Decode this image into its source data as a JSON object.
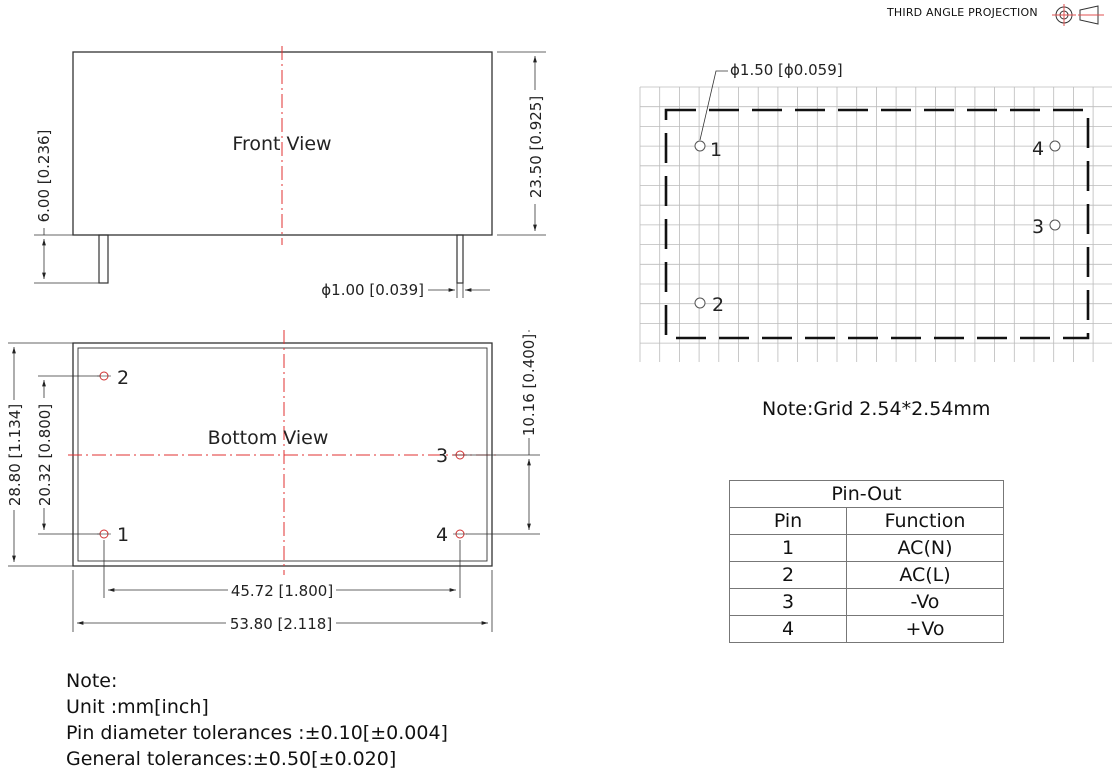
{
  "projection": {
    "label": "THIRD ANGLE PROJECTION"
  },
  "front_view": {
    "title": "Front View",
    "dim_height": "23.50 [0.925]",
    "dim_pin_length": "6.00 [0.236]",
    "dim_pin_diameter": "ϕ1.00 [0.039]"
  },
  "bottom_view": {
    "title": "Bottom View",
    "dim_height": "28.80 [1.134]",
    "dim_pin_span_v": "20.32 [0.800]",
    "dim_pin3_offset": "10.16 [0.400]",
    "dim_pin_span_h": "45.72 [1.800]",
    "dim_width": "53.80 [2.118]",
    "pins": [
      "1",
      "2",
      "3",
      "4"
    ]
  },
  "grid_view": {
    "hole_diameter": "ϕ1.50 [ϕ0.059]",
    "pins": [
      "1",
      "2",
      "3",
      "4"
    ],
    "note": "Note:Grid 2.54*2.54mm"
  },
  "pinout_table": {
    "title": "Pin-Out",
    "headers": [
      "Pin",
      "Function"
    ],
    "rows": [
      {
        "pin": "1",
        "function": "AC(N)"
      },
      {
        "pin": "2",
        "function": "AC(L)"
      },
      {
        "pin": "3",
        "function": "-Vo"
      },
      {
        "pin": "4",
        "function": "+Vo"
      }
    ]
  },
  "notes": {
    "title": "Note:",
    "lines": [
      "Unit :mm[inch]",
      "Pin diameter tolerances :±0.10[±0.004]",
      "General tolerances:±0.50[±0.020]"
    ]
  }
}
